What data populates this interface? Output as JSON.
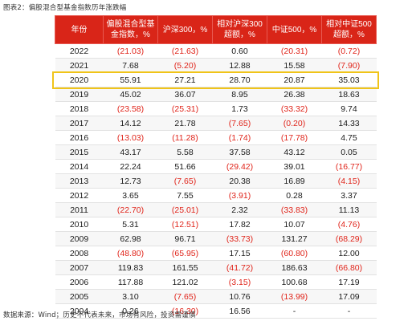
{
  "caption": "图表2：偏股混合型基金指数历年涨跌幅",
  "source": "数据来源：Wind；历史不代表未来，市场有风险，投资需谨慎",
  "highlight_year": "2020",
  "chart_data": {
    "type": "table",
    "title": "图表2：偏股混合型基金指数历年涨跌幅",
    "columns": [
      "年份",
      "偏股混合型基金指数，%",
      "沪深300，%",
      "相对沪深300超额，%",
      "中证500，%",
      "相对中证500超额，%"
    ],
    "rows": [
      [
        "2022",
        "(21.03)",
        "(21.63)",
        "0.60",
        "(20.31)",
        "(0.72)"
      ],
      [
        "2021",
        "7.68",
        "(5.20)",
        "12.88",
        "15.58",
        "(7.90)"
      ],
      [
        "2020",
        "55.91",
        "27.21",
        "28.70",
        "20.87",
        "35.03"
      ],
      [
        "2019",
        "45.02",
        "36.07",
        "8.95",
        "26.38",
        "18.63"
      ],
      [
        "2018",
        "(23.58)",
        "(25.31)",
        "1.73",
        "(33.32)",
        "9.74"
      ],
      [
        "2017",
        "14.12",
        "21.78",
        "(7.65)",
        "(0.20)",
        "14.33"
      ],
      [
        "2016",
        "(13.03)",
        "(11.28)",
        "(1.74)",
        "(17.78)",
        "4.75"
      ],
      [
        "2015",
        "43.17",
        "5.58",
        "37.58",
        "43.12",
        "0.05"
      ],
      [
        "2014",
        "22.24",
        "51.66",
        "(29.42)",
        "39.01",
        "(16.77)"
      ],
      [
        "2013",
        "12.73",
        "(7.65)",
        "20.38",
        "16.89",
        "(4.15)"
      ],
      [
        "2012",
        "3.65",
        "7.55",
        "(3.91)",
        "0.28",
        "3.37"
      ],
      [
        "2011",
        "(22.70)",
        "(25.01)",
        "2.32",
        "(33.83)",
        "11.13"
      ],
      [
        "2010",
        "5.31",
        "(12.51)",
        "17.82",
        "10.07",
        "(4.76)"
      ],
      [
        "2009",
        "62.98",
        "96.71",
        "(33.73)",
        "131.27",
        "(68.29)"
      ],
      [
        "2008",
        "(48.80)",
        "(65.95)",
        "17.15",
        "(60.80)",
        "12.00"
      ],
      [
        "2007",
        "119.83",
        "161.55",
        "(41.72)",
        "186.63",
        "(66.80)"
      ],
      [
        "2006",
        "117.88",
        "121.02",
        "(3.15)",
        "100.68",
        "17.19"
      ],
      [
        "2005",
        "3.10",
        "(7.65)",
        "10.76",
        "(13.99)",
        "17.09"
      ],
      [
        "2004",
        "0.26",
        "(16.30)",
        "16.56",
        "-",
        "-"
      ]
    ],
    "colors": {
      "header_bg": "#d92518",
      "header_text": "#ffffff",
      "negative_text": "#e0241a",
      "positive_text": "#1a1a1a",
      "highlight_border": "#f0c419"
    }
  }
}
